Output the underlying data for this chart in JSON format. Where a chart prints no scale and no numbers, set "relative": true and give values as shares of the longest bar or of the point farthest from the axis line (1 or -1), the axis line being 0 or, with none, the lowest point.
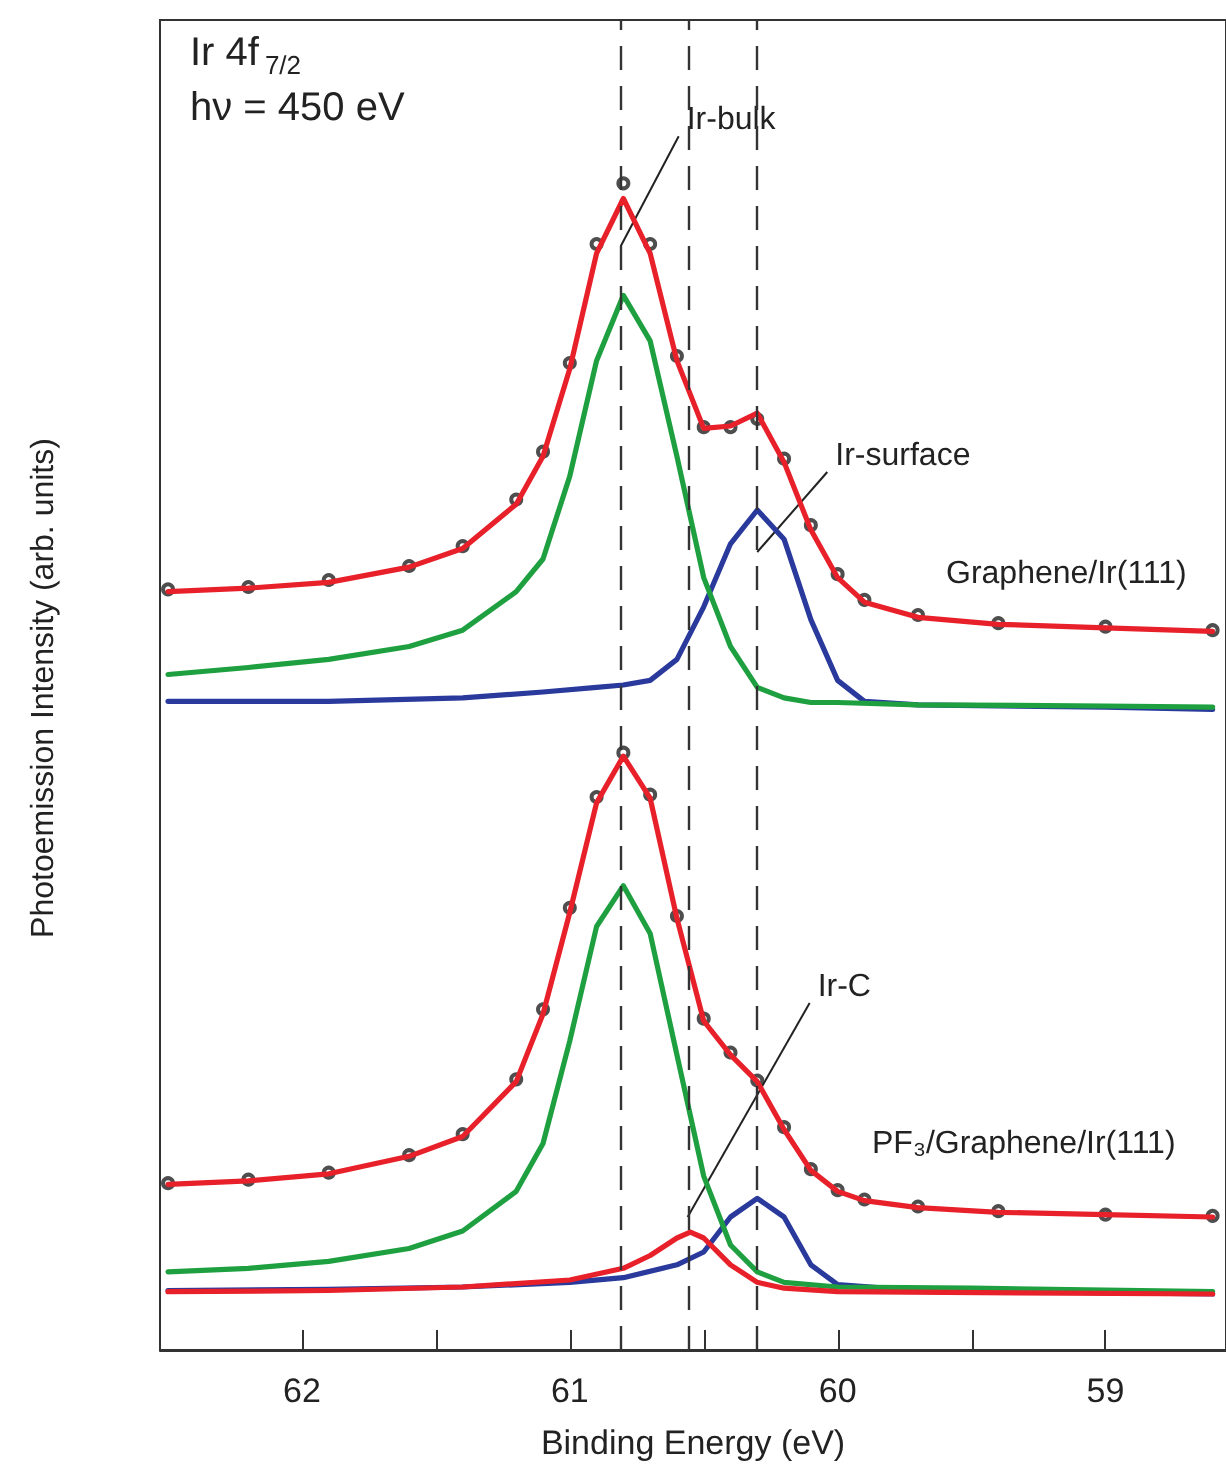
{
  "chart_data": {
    "type": "line",
    "relative": true,
    "xlabel": "Binding Energy (eV)",
    "ylabel": "Photoemission Intensity (arb. units)",
    "xlim": [
      62.53,
      58.55
    ],
    "xticks": [
      62,
      {
        "value": 61.5,
        "label": null
      },
      61,
      {
        "value": 60.5,
        "label": null
      },
      60,
      {
        "value": 59.5,
        "label": null
      },
      59
    ],
    "line_style": "solid",
    "annotations": [
      "Ir 4f$_{7/2}$",
      "hν = 450 eV",
      {
        "text": "Ir-bulk",
        "x": 60.81,
        "y": 0.946
      },
      {
        "text": "Ir-surface",
        "x": 60.3,
        "y": 0.684
      },
      "Graphene/Ir(111)",
      {
        "text": "Ir-C",
        "x": 60.56,
        "y": 0.114
      },
      "PF₃/Graphene/Ir(111)"
    ],
    "ref_lines": [
      {
        "axis": "x",
        "value": 60.81,
        "line_style": "dashed",
        "color": "#333333"
      },
      {
        "axis": "x",
        "value": 60.3,
        "line_style": "dashed",
        "color": "#333333"
      },
      {
        "axis": "x",
        "value": 60.56,
        "line_style": "dashed",
        "color": "#333333"
      }
    ],
    "series": [
      {
        "color": "#2a3a9c",
        "x": [
          62.5,
          61.9,
          61.4,
          61.1,
          60.9,
          60.8,
          60.7,
          60.6,
          60.5,
          60.4,
          60.3,
          60.2,
          60.1,
          60.0,
          59.9,
          59.7,
          59.0,
          58.6
        ],
        "values": [
          0.556,
          0.556,
          0.559,
          0.564,
          0.568,
          0.57,
          0.574,
          0.592,
          0.637,
          0.691,
          0.72,
          0.695,
          0.626,
          0.574,
          0.556,
          0.553,
          0.551,
          0.549
        ]
      },
      {
        "color": "#1fa040",
        "x": [
          62.5,
          62.2,
          61.9,
          61.6,
          61.4,
          61.2,
          61.1,
          61.0,
          60.9,
          60.8,
          60.7,
          60.6,
          60.5,
          60.4,
          60.3,
          60.2,
          60.1,
          60.0,
          59.7,
          59.0,
          58.6
        ],
        "values": [
          0.579,
          0.585,
          0.592,
          0.603,
          0.617,
          0.65,
          0.678,
          0.749,
          0.848,
          0.904,
          0.865,
          0.766,
          0.662,
          0.603,
          0.568,
          0.559,
          0.555,
          0.555,
          0.553,
          0.552,
          0.551
        ]
      },
      {
        "type": "scatter",
        "marker": "circle",
        "color": "#222222",
        "x": [
          62.5,
          62.2,
          61.9,
          61.6,
          61.4,
          61.2,
          61.1,
          61.0,
          60.9,
          60.8,
          60.7,
          60.6,
          60.5,
          60.4,
          60.3,
          60.2,
          60.1,
          60.0,
          59.9,
          59.7,
          59.4,
          59.0,
          58.6
        ],
        "values": [
          0.652,
          0.654,
          0.66,
          0.672,
          0.689,
          0.729,
          0.77,
          0.846,
          0.948,
          1.0,
          0.948,
          0.852,
          0.791,
          0.791,
          0.798,
          0.764,
          0.707,
          0.665,
          0.643,
          0.63,
          0.623,
          0.62,
          0.617
        ]
      },
      {
        "color": "#e8202a",
        "x": [
          62.5,
          62.2,
          61.9,
          61.6,
          61.4,
          61.2,
          61.1,
          61.0,
          60.9,
          60.8,
          60.7,
          60.6,
          60.5,
          60.4,
          60.3,
          60.2,
          60.1,
          60.0,
          59.9,
          59.7,
          59.4,
          59.0,
          58.6
        ],
        "values": [
          0.65,
          0.653,
          0.658,
          0.671,
          0.687,
          0.725,
          0.766,
          0.841,
          0.94,
          0.987,
          0.94,
          0.848,
          0.79,
          0.792,
          0.803,
          0.761,
          0.703,
          0.662,
          0.641,
          0.628,
          0.622,
          0.619,
          0.616
        ]
      },
      {
        "color": "#2a3a9c",
        "x": [
          62.5,
          61.9,
          61.4,
          61.0,
          60.8,
          60.6,
          60.5,
          60.4,
          60.3,
          60.2,
          60.1,
          60.0,
          59.7,
          58.6
        ],
        "values": [
          0.051,
          0.052,
          0.054,
          0.058,
          0.062,
          0.073,
          0.084,
          0.114,
          0.13,
          0.114,
          0.073,
          0.056,
          0.051,
          0.048
        ]
      },
      {
        "color": "#1fa040",
        "x": [
          62.5,
          62.2,
          61.9,
          61.6,
          61.4,
          61.2,
          61.1,
          61.0,
          60.9,
          60.8,
          60.7,
          60.6,
          60.5,
          60.4,
          60.3,
          60.2,
          60.0,
          59.5,
          58.6
        ],
        "values": [
          0.067,
          0.07,
          0.076,
          0.087,
          0.102,
          0.136,
          0.177,
          0.265,
          0.363,
          0.398,
          0.357,
          0.253,
          0.149,
          0.09,
          0.067,
          0.058,
          0.054,
          0.053,
          0.05
        ]
      },
      {
        "color": "#e8202a",
        "x": [
          62.5,
          61.9,
          61.4,
          61.0,
          60.8,
          60.7,
          60.6,
          60.55,
          60.5,
          60.4,
          60.3,
          60.2,
          60.0,
          58.6
        ],
        "values": [
          0.05,
          0.051,
          0.054,
          0.06,
          0.07,
          0.081,
          0.096,
          0.101,
          0.096,
          0.073,
          0.058,
          0.053,
          0.05,
          0.048
        ]
      },
      {
        "type": "scatter",
        "marker": "circle",
        "color": "#222222",
        "x": [
          62.5,
          62.2,
          61.9,
          61.6,
          61.4,
          61.2,
          61.1,
          61.0,
          60.9,
          60.8,
          60.7,
          60.6,
          60.5,
          60.4,
          60.3,
          60.2,
          60.1,
          60.0,
          59.9,
          59.7,
          59.4,
          59.0,
          58.6
        ],
        "values": [
          0.143,
          0.146,
          0.152,
          0.167,
          0.185,
          0.232,
          0.292,
          0.379,
          0.474,
          0.512,
          0.476,
          0.372,
          0.284,
          0.255,
          0.231,
          0.191,
          0.155,
          0.137,
          0.129,
          0.123,
          0.119,
          0.116,
          0.115
        ]
      },
      {
        "color": "#e8202a",
        "x": [
          62.5,
          62.2,
          61.9,
          61.6,
          61.4,
          61.2,
          61.1,
          61.0,
          60.9,
          60.8,
          60.7,
          60.6,
          60.5,
          60.4,
          60.3,
          60.2,
          60.1,
          60.0,
          59.9,
          59.7,
          59.4,
          59.0,
          58.6
        ],
        "values": [
          0.142,
          0.145,
          0.151,
          0.166,
          0.183,
          0.23,
          0.288,
          0.375,
          0.469,
          0.509,
          0.473,
          0.37,
          0.282,
          0.253,
          0.23,
          0.189,
          0.154,
          0.136,
          0.128,
          0.122,
          0.118,
          0.116,
          0.114
        ]
      }
    ]
  }
}
